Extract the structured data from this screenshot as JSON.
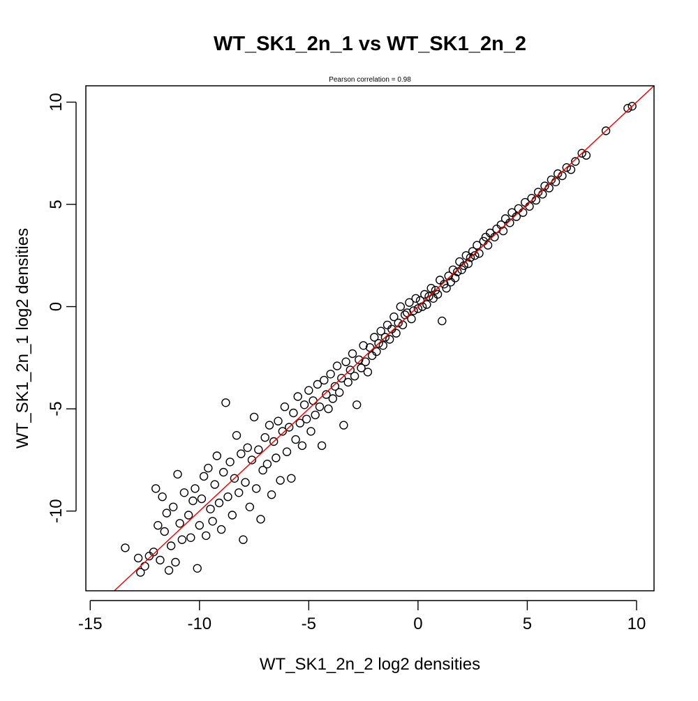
{
  "chart_data": {
    "type": "scatter",
    "title": "WT_SK1_2n_1 vs WT_SK1_2n_2",
    "subtitle": "Pearson correlation =  0.98",
    "xlabel": "WT_SK1_2n_2 log2 densities",
    "ylabel": "WT_SK1_2n_1 log2 densities",
    "xlim": [
      -15.2,
      10.8
    ],
    "ylim": [
      -13.9,
      10.8
    ],
    "x_ticks": [
      -15,
      -10,
      -5,
      0,
      5,
      10
    ],
    "x_tick_labels": [
      "-15",
      "-10",
      "-5",
      "0",
      "5",
      "10"
    ],
    "y_ticks": [
      -10,
      -5,
      0,
      5,
      10
    ],
    "y_tick_labels": [
      "-10",
      "-5",
      "0",
      "5",
      "10"
    ],
    "grid": false,
    "marker": "open-circle",
    "reference_line": {
      "slope": 1,
      "intercept": 0,
      "color": "#ff0000"
    },
    "series": [
      {
        "color": "#000000",
        "points": [
          [
            -13.4,
            -11.8
          ],
          [
            -12.8,
            -12.3
          ],
          [
            -12.7,
            -13.0
          ],
          [
            -12.5,
            -12.7
          ],
          [
            -12.3,
            -12.2
          ],
          [
            -12.1,
            -12.0
          ],
          [
            -12.0,
            -8.9
          ],
          [
            -11.9,
            -10.7
          ],
          [
            -11.8,
            -12.4
          ],
          [
            -11.7,
            -9.3
          ],
          [
            -11.6,
            -11.0
          ],
          [
            -11.5,
            -10.1
          ],
          [
            -11.4,
            -12.9
          ],
          [
            -11.3,
            -11.7
          ],
          [
            -11.2,
            -9.8
          ],
          [
            -11.1,
            -12.5
          ],
          [
            -11.0,
            -8.2
          ],
          [
            -10.9,
            -10.6
          ],
          [
            -10.8,
            -11.4
          ],
          [
            -10.7,
            -9.1
          ],
          [
            -10.5,
            -10.2
          ],
          [
            -10.4,
            -11.3
          ],
          [
            -10.3,
            -9.5
          ],
          [
            -10.2,
            -8.9
          ],
          [
            -10.1,
            -12.8
          ],
          [
            -10.0,
            -10.7
          ],
          [
            -9.9,
            -9.4
          ],
          [
            -9.8,
            -8.3
          ],
          [
            -9.7,
            -11.2
          ],
          [
            -9.6,
            -7.9
          ],
          [
            -9.5,
            -9.9
          ],
          [
            -9.4,
            -10.5
          ],
          [
            -9.3,
            -8.7
          ],
          [
            -9.2,
            -7.3
          ],
          [
            -9.1,
            -9.6
          ],
          [
            -9.0,
            -10.9
          ],
          [
            -8.9,
            -8.1
          ],
          [
            -8.8,
            -4.7
          ],
          [
            -8.7,
            -9.3
          ],
          [
            -8.6,
            -7.6
          ],
          [
            -8.5,
            -10.2
          ],
          [
            -8.4,
            -8.4
          ],
          [
            -8.3,
            -6.3
          ],
          [
            -8.2,
            -9.1
          ],
          [
            -8.1,
            -7.2
          ],
          [
            -8.0,
            -11.4
          ],
          [
            -7.9,
            -8.6
          ],
          [
            -7.8,
            -6.9
          ],
          [
            -7.7,
            -9.8
          ],
          [
            -7.6,
            -7.5
          ],
          [
            -7.5,
            -5.4
          ],
          [
            -7.4,
            -8.9
          ],
          [
            -7.3,
            -7.0
          ],
          [
            -7.2,
            -10.4
          ],
          [
            -7.1,
            -8.0
          ],
          [
            -7.0,
            -6.4
          ],
          [
            -6.9,
            -7.7
          ],
          [
            -6.8,
            -5.8
          ],
          [
            -6.7,
            -9.2
          ],
          [
            -6.6,
            -6.6
          ],
          [
            -6.5,
            -7.4
          ],
          [
            -6.4,
            -5.6
          ],
          [
            -6.3,
            -8.5
          ],
          [
            -6.2,
            -6.1
          ],
          [
            -6.1,
            -4.9
          ],
          [
            -6.0,
            -7.1
          ],
          [
            -5.9,
            -5.9
          ],
          [
            -5.8,
            -8.4
          ],
          [
            -5.7,
            -5.2
          ],
          [
            -5.6,
            -6.5
          ],
          [
            -5.5,
            -4.4
          ],
          [
            -5.4,
            -5.7
          ],
          [
            -5.3,
            -6.8
          ],
          [
            -5.2,
            -4.8
          ],
          [
            -5.1,
            -5.5
          ],
          [
            -5.0,
            -4.1
          ],
          [
            -4.9,
            -6.1
          ],
          [
            -4.8,
            -4.6
          ],
          [
            -4.7,
            -5.3
          ],
          [
            -4.6,
            -3.8
          ],
          [
            -4.5,
            -4.9
          ],
          [
            -4.4,
            -6.8
          ],
          [
            -4.3,
            -3.6
          ],
          [
            -4.2,
            -4.3
          ],
          [
            -4.1,
            -5.0
          ],
          [
            -4.0,
            -3.3
          ],
          [
            -3.9,
            -4.5
          ],
          [
            -3.8,
            -3.9
          ],
          [
            -3.7,
            -2.9
          ],
          [
            -3.6,
            -4.2
          ],
          [
            -3.5,
            -3.5
          ],
          [
            -3.4,
            -5.8
          ],
          [
            -3.3,
            -2.7
          ],
          [
            -3.2,
            -3.7
          ],
          [
            -3.1,
            -3.1
          ],
          [
            -3.0,
            -2.3
          ],
          [
            -2.9,
            -3.4
          ],
          [
            -2.8,
            -4.8
          ],
          [
            -2.7,
            -2.6
          ],
          [
            -2.6,
            -3.0
          ],
          [
            -2.5,
            -1.9
          ],
          [
            -2.4,
            -2.7
          ],
          [
            -2.3,
            -3.2
          ],
          [
            -2.2,
            -2.0
          ],
          [
            -2.1,
            -2.4
          ],
          [
            -2.0,
            -1.5
          ],
          [
            -1.9,
            -2.2
          ],
          [
            -1.8,
            -1.8
          ],
          [
            -1.7,
            -1.2
          ],
          [
            -1.6,
            -1.9
          ],
          [
            -1.5,
            -1.5
          ],
          [
            -1.4,
            -0.9
          ],
          [
            -1.3,
            -1.6
          ],
          [
            -1.2,
            -1.1
          ],
          [
            -1.1,
            -0.5
          ],
          [
            -1.0,
            -1.3
          ],
          [
            -0.9,
            -0.8
          ],
          [
            -0.8,
            0.0
          ],
          [
            -0.7,
            -0.9
          ],
          [
            -0.6,
            -0.4
          ],
          [
            -0.5,
            -0.3
          ],
          [
            -0.4,
            0.2
          ],
          [
            -0.3,
            -0.6
          ],
          [
            -0.2,
            -0.2
          ],
          [
            -0.1,
            0.4
          ],
          [
            0.0,
            -0.1
          ],
          [
            0.1,
            0.3
          ],
          [
            0.2,
            0.0
          ],
          [
            0.3,
            0.6
          ],
          [
            0.4,
            0.1
          ],
          [
            0.5,
            0.5
          ],
          [
            0.6,
            0.9
          ],
          [
            0.7,
            0.4
          ],
          [
            0.8,
            0.8
          ],
          [
            0.9,
            0.6
          ],
          [
            1.0,
            1.3
          ],
          [
            1.1,
            -0.7
          ],
          [
            1.2,
            1.1
          ],
          [
            1.3,
            0.9
          ],
          [
            1.4,
            1.5
          ],
          [
            1.5,
            1.2
          ],
          [
            1.6,
            1.8
          ],
          [
            1.7,
            1.4
          ],
          [
            1.8,
            1.7
          ],
          [
            1.9,
            2.2
          ],
          [
            2.0,
            1.8
          ],
          [
            2.1,
            2.0
          ],
          [
            2.2,
            2.5
          ],
          [
            2.3,
            2.1
          ],
          [
            2.4,
            2.4
          ],
          [
            2.5,
            2.7
          ],
          [
            2.6,
            2.5
          ],
          [
            2.7,
            3.0
          ],
          [
            2.8,
            2.6
          ],
          [
            3.0,
            3.2
          ],
          [
            3.1,
            3.4
          ],
          [
            3.2,
            3.0
          ],
          [
            3.3,
            3.6
          ],
          [
            3.5,
            3.4
          ],
          [
            3.6,
            3.8
          ],
          [
            3.8,
            4.0
          ],
          [
            3.9,
            3.7
          ],
          [
            4.0,
            4.3
          ],
          [
            4.2,
            4.1
          ],
          [
            4.3,
            4.6
          ],
          [
            4.5,
            4.4
          ],
          [
            4.6,
            4.8
          ],
          [
            4.8,
            4.6
          ],
          [
            4.9,
            5.1
          ],
          [
            5.1,
            4.9
          ],
          [
            5.2,
            5.3
          ],
          [
            5.4,
            5.2
          ],
          [
            5.5,
            5.6
          ],
          [
            5.7,
            5.5
          ],
          [
            5.8,
            5.9
          ],
          [
            6.0,
            5.8
          ],
          [
            6.1,
            6.2
          ],
          [
            6.3,
            6.1
          ],
          [
            6.4,
            6.5
          ],
          [
            6.6,
            6.4
          ],
          [
            6.8,
            6.8
          ],
          [
            7.0,
            6.7
          ],
          [
            7.2,
            7.1
          ],
          [
            7.5,
            7.5
          ],
          [
            7.7,
            7.4
          ],
          [
            8.6,
            8.6
          ],
          [
            9.6,
            9.7
          ],
          [
            9.8,
            9.8
          ]
        ]
      }
    ]
  }
}
